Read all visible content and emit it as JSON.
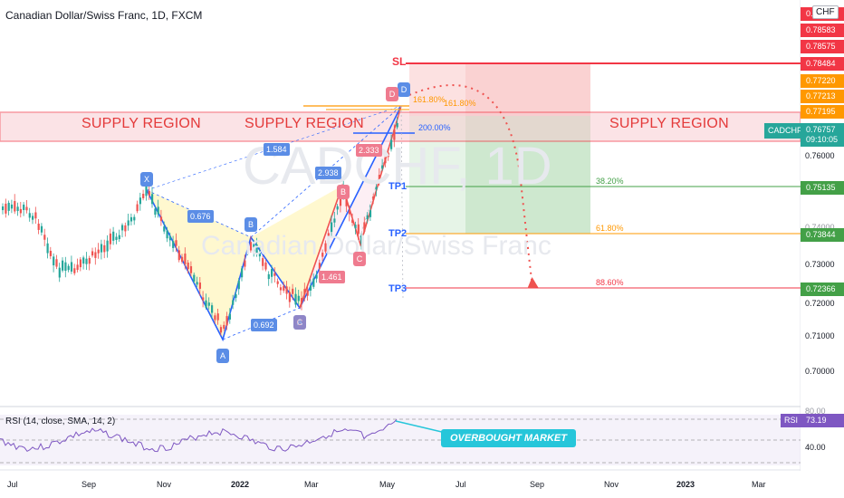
{
  "header": {
    "title": "Canadian Dollar/Swiss Franc, 1D, FXCM"
  },
  "watermark": {
    "symbol": "CADCHF, 1D",
    "name": "Canadian Dollar/Swiss Franc"
  },
  "annotations": {
    "supply_label": "SUPPLY REGION",
    "sl_label": "SL",
    "tp1_label": "TP1",
    "tp2_label": "TP2",
    "tp3_label": "TP3",
    "overbought_label": "OVERBOUGHT MARKET"
  },
  "pattern": {
    "points": [
      "X",
      "A",
      "B",
      "C",
      "D",
      "A",
      "B",
      "C",
      "D"
    ],
    "ratios": [
      "1.584",
      "0.676",
      "0.692",
      "2.938",
      "2.333",
      "1.461"
    ],
    "fib_161_left": "161.80%",
    "fib_161_right": "161.80%",
    "fib_200": "200.00%"
  },
  "targets": {
    "tp1_pct": "38.20%",
    "tp2_pct": "61.80%",
    "tp3_pct": "88.60%"
  },
  "price_axis": {
    "currency": "CHF",
    "ticks": [
      "0.76000",
      "0.74000",
      "0.73000",
      "0.72000",
      "0.71000",
      "0.70000"
    ],
    "tick_top": "0.",
    "labels": [
      {
        "value": "0.78583",
        "color": "#f23645"
      },
      {
        "value": "0.78575",
        "color": "#f23645"
      },
      {
        "value": "0.78484",
        "color": "#f23645"
      },
      {
        "value": "0.77220",
        "color": "#ff9800"
      },
      {
        "value": "0.77213",
        "color": "#ff9800"
      },
      {
        "value": "0.77195",
        "color": "#ff9800"
      }
    ],
    "current_symbol": "CADCHF",
    "current_price": "0.76757",
    "countdown": "09:10:05",
    "tp1_price": "0.75135",
    "tp2_price": "0.73844",
    "tp3_price": "0.72366"
  },
  "rsi": {
    "label": "RSI (14, close, SMA, 14, 2)",
    "tag": "RSI",
    "value": "73.19",
    "tick_top": "80.00",
    "tick_mid": "40.00"
  },
  "time_axis": [
    "Jul",
    "Sep",
    "Nov",
    "2022",
    "Mar",
    "May",
    "Jul",
    "Sep",
    "Nov",
    "2023",
    "Mar"
  ]
}
